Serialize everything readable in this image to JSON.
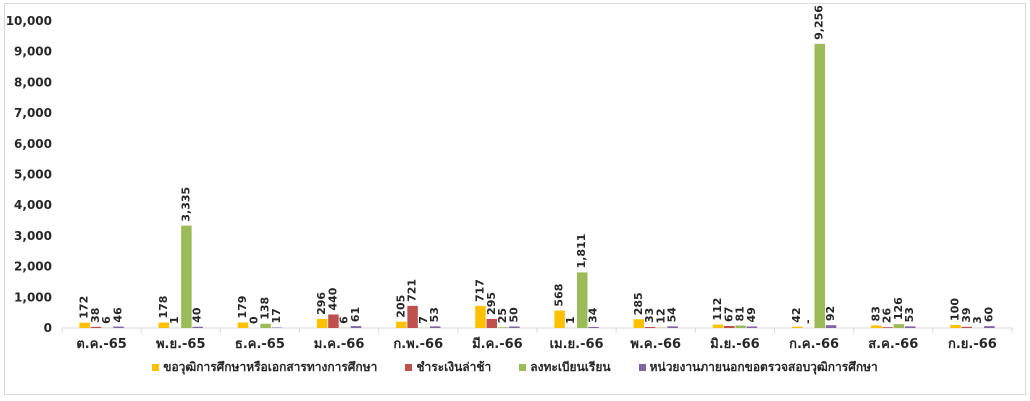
{
  "chart_data": {
    "type": "bar",
    "categories": [
      "ต.ค.-65",
      "พ.ย.-65",
      "ธ.ค.-65",
      "ม.ค.-66",
      "ก.พ.-66",
      "มี.ค.-66",
      "เม.ย.-66",
      "พ.ค.-66",
      "มิ.ย.-66",
      "ก.ค.-66",
      "ส.ค.-66",
      "ก.ย.-66"
    ],
    "series": [
      {
        "name": "ขอวุฒิการศึกษาหรือเอกสารทางการศึกษา",
        "color": "#ffc000",
        "values": [
          172,
          178,
          179,
          296,
          205,
          717,
          568,
          285,
          112,
          42,
          83,
          100
        ],
        "labels": [
          "172",
          "178",
          "179",
          "296",
          "205",
          "717",
          "568",
          "285",
          "112",
          "42",
          "83",
          "100"
        ]
      },
      {
        "name": "ชำระเงินล่าช้า",
        "color": "#c0504d",
        "values": [
          38,
          1,
          0,
          440,
          721,
          295,
          1,
          33,
          67,
          0,
          26,
          39
        ],
        "labels": [
          "38",
          "1",
          "0",
          "440",
          "721",
          "295",
          "1",
          "33",
          "67",
          "-",
          "26",
          "39"
        ]
      },
      {
        "name": "ลงทะเบียนเรียน",
        "color": "#9bbb59",
        "values": [
          6,
          3335,
          138,
          6,
          7,
          25,
          1811,
          12,
          81,
          9256,
          126,
          3
        ],
        "labels": [
          "6",
          "3,335",
          "138",
          "6",
          "7",
          "25",
          "1,811",
          "12",
          "81",
          "9,256",
          "126",
          "3"
        ]
      },
      {
        "name": "หน่วยงานภายนอกขอตรวจสอบวุฒิการศึกษา",
        "color": "#8064a2",
        "values": [
          46,
          40,
          17,
          61,
          53,
          50,
          34,
          54,
          49,
          92,
          53,
          60
        ],
        "labels": [
          "46",
          "40",
          "17",
          "61",
          "53",
          "50",
          "34",
          "54",
          "49",
          "92",
          "53",
          "60"
        ]
      }
    ],
    "ylim": [
      0,
      10000
    ],
    "yticks": [
      "0",
      "1,000",
      "2,000",
      "3,000",
      "4,000",
      "5,000",
      "6,000",
      "7,000",
      "8,000",
      "9,000",
      "10,000"
    ],
    "grid": false,
    "legend_position": "bottom"
  }
}
